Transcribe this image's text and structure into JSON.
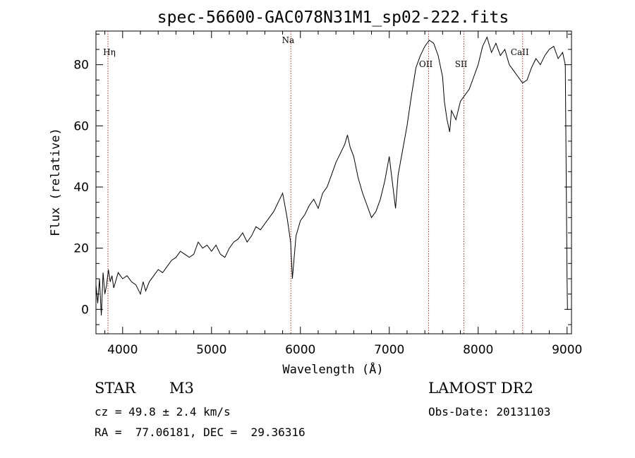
{
  "chart_data": {
    "type": "line",
    "title": "spec-56600-GAC078N31M1_sp02-222.fits",
    "xlabel": "Wavelength (Å)",
    "ylabel": "Flux (relative)",
    "xlim": [
      3700,
      9050
    ],
    "ylim": [
      -8,
      91
    ],
    "xticks": [
      4000,
      5000,
      6000,
      7000,
      8000,
      9000
    ],
    "yticks": [
      0,
      20,
      40,
      60,
      80
    ],
    "grid": false,
    "series": [
      {
        "x": [
          3700,
          3720,
          3740,
          3760,
          3780,
          3800,
          3820,
          3840,
          3860,
          3880,
          3900,
          3950,
          4000,
          4050,
          4100,
          4150,
          4200,
          4230,
          4260,
          4300,
          4350,
          4400,
          4450,
          4500,
          4550,
          4600,
          4650,
          4700,
          4750,
          4800,
          4850,
          4900,
          4950,
          5000,
          5050,
          5100,
          5150,
          5200,
          5250,
          5300,
          5350,
          5400,
          5450,
          5500,
          5550,
          5600,
          5650,
          5700,
          5750,
          5800,
          5850,
          5890,
          5910,
          5950,
          6000,
          6050,
          6100,
          6150,
          6200,
          6250,
          6300,
          6350,
          6400,
          6450,
          6500,
          6530,
          6560,
          6600,
          6650,
          6700,
          6750,
          6800,
          6850,
          6900,
          6950,
          7000,
          7050,
          7070,
          7100,
          7150,
          7200,
          7250,
          7300,
          7350,
          7400,
          7450,
          7500,
          7550,
          7600,
          7620,
          7650,
          7680,
          7700,
          7750,
          7800,
          7850,
          7900,
          7950,
          8000,
          8050,
          8100,
          8150,
          8200,
          8250,
          8300,
          8350,
          8400,
          8450,
          8500,
          8550,
          8600,
          8650,
          8700,
          8750,
          8800,
          8850,
          8900,
          8950,
          8980,
          9000,
          9005
        ],
        "y": [
          8,
          2,
          10,
          -2,
          12,
          5,
          8,
          13,
          9,
          11,
          7,
          12,
          10,
          11,
          9,
          8,
          5,
          9,
          6,
          9,
          11,
          13,
          12,
          14,
          16,
          17,
          19,
          18,
          17,
          18,
          22,
          20,
          21,
          19,
          21,
          18,
          17,
          20,
          22,
          23,
          25,
          22,
          24,
          27,
          26,
          28,
          30,
          32,
          35,
          38,
          30,
          22,
          10,
          24,
          29,
          31,
          34,
          36,
          33,
          38,
          40,
          44,
          48,
          51,
          54,
          57,
          53,
          50,
          43,
          38,
          34,
          30,
          32,
          36,
          42,
          50,
          38,
          33,
          44,
          52,
          60,
          70,
          79,
          83,
          86,
          88,
          87,
          83,
          76,
          68,
          62,
          58,
          65,
          62,
          68,
          70,
          72,
          76,
          80,
          86,
          89,
          84,
          87,
          83,
          85,
          80,
          78,
          76,
          74,
          75,
          79,
          82,
          80,
          83,
          85,
          86,
          82,
          84,
          80,
          10,
          0
        ]
      }
    ],
    "lines": [
      {
        "label": "Hη",
        "x": 3835
      },
      {
        "label": "Na",
        "x": 5893
      },
      {
        "label": "OII",
        "x": 7443
      },
      {
        "label": "SII",
        "x": 7840
      },
      {
        "label": "CaII",
        "x": 8500
      }
    ],
    "line_color": "#b03030"
  },
  "info": {
    "object_type": "STAR",
    "subclass": "M3",
    "survey": "LAMOST DR2",
    "cz": "cz = 49.8 ± 2.4 km/s",
    "obs_date": "Obs-Date: 20131103",
    "coords": "RA =  77.06181, DEC =  29.36316"
  }
}
